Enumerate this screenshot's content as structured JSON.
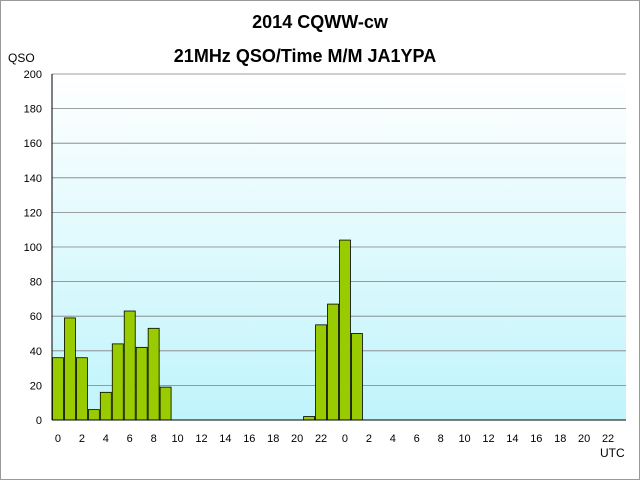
{
  "title": "2014  CQWW-cw",
  "subtitle": "21MHz QSO/Time  M/M JA1YPA",
  "colors": {
    "plot_bg_top": "#ffffff",
    "plot_bg_bottom": "#bff4fb",
    "bar_fill": "#99cc00",
    "bar_stroke": "#000000",
    "grid": "#7f7f7f"
  },
  "chart_data": {
    "type": "bar",
    "title": "2014  CQWW-cw",
    "subtitle": "21MHz QSO/Time  M/M JA1YPA",
    "ylabel": "QSO",
    "xlabel": "UTC",
    "ylim": [
      0,
      200
    ],
    "y_ticks": [
      0,
      20,
      40,
      60,
      80,
      100,
      120,
      140,
      160,
      180,
      200
    ],
    "grid": true,
    "categories": [
      "0",
      "1",
      "2",
      "3",
      "4",
      "5",
      "6",
      "7",
      "8",
      "9",
      "10",
      "11",
      "12",
      "13",
      "14",
      "15",
      "16",
      "17",
      "18",
      "19",
      "20",
      "21",
      "22",
      "23",
      "0",
      "1",
      "2",
      "3",
      "4",
      "5",
      "6",
      "7",
      "8",
      "9",
      "10",
      "11",
      "12",
      "13",
      "14",
      "15",
      "16",
      "17",
      "18",
      "19",
      "20",
      "21",
      "22",
      "23"
    ],
    "x_tick_labels": [
      "0",
      "2",
      "4",
      "6",
      "8",
      "10",
      "12",
      "14",
      "16",
      "18",
      "20",
      "22",
      "0",
      "2",
      "4",
      "6",
      "8",
      "10",
      "12",
      "14",
      "16",
      "18",
      "20",
      "22"
    ],
    "values": [
      36,
      59,
      36,
      6,
      16,
      44,
      63,
      42,
      53,
      19,
      0,
      0,
      0,
      0,
      0,
      0,
      0,
      0,
      0,
      0,
      0,
      2,
      55,
      67,
      104,
      50,
      0,
      0,
      0,
      0,
      0,
      0,
      0,
      0,
      0,
      0,
      0,
      0,
      0,
      0,
      0,
      0,
      0,
      0,
      0,
      0,
      0,
      0
    ]
  }
}
